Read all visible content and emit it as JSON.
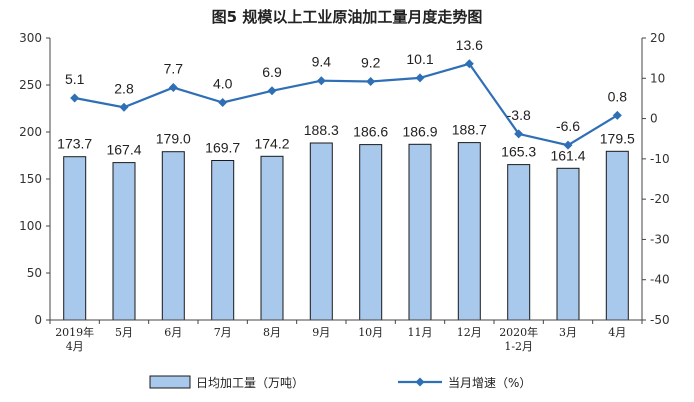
{
  "chart_data": {
    "type": "bar",
    "title": "图5  规模以上工业原油加工量月度走势图",
    "categories": [
      [
        "2019年",
        "4月"
      ],
      [
        "5月"
      ],
      [
        "6月"
      ],
      [
        "7月"
      ],
      [
        "8月"
      ],
      [
        "9月"
      ],
      [
        "10月"
      ],
      [
        "11月"
      ],
      [
        "12月"
      ],
      [
        "2020年",
        "1-2月"
      ],
      [
        "3月"
      ],
      [
        "4月"
      ]
    ],
    "series": [
      {
        "name": "日均加工量（万吨）",
        "type": "bar",
        "axis": "left",
        "color": "#a8c8ec",
        "values": [
          173.7,
          167.4,
          179.0,
          169.7,
          174.2,
          188.3,
          186.6,
          186.9,
          188.7,
          165.3,
          161.4,
          179.5
        ],
        "labels": [
          "173.7",
          "167.4",
          "179.0",
          "169.7",
          "174.2",
          "188.3",
          "186.6",
          "186.9",
          "188.7",
          "165.3",
          "161.4",
          "179.5"
        ]
      },
      {
        "name": "当月增速（%）",
        "type": "line",
        "axis": "right",
        "color": "#2e6fb5",
        "values": [
          5.1,
          2.8,
          7.7,
          4.0,
          6.9,
          9.4,
          9.2,
          10.1,
          13.6,
          -3.8,
          -6.6,
          0.8
        ],
        "labels": [
          "5.1",
          "2.8",
          "7.7",
          "4.0",
          "6.9",
          "9.4",
          "9.2",
          "10.1",
          "13.6",
          "-3.8",
          "-6.6",
          "0.8"
        ]
      }
    ],
    "ylim_left": [
      0,
      300
    ],
    "yticks_left": [
      "0",
      "50",
      "100",
      "150",
      "200",
      "250",
      "300"
    ],
    "ylim_right": [
      -50,
      20
    ],
    "yticks_right": [
      "-50",
      "-40",
      "-30",
      "-20",
      "-10",
      "0",
      "10",
      "20"
    ],
    "grid": false,
    "legend_position": "bottom"
  }
}
